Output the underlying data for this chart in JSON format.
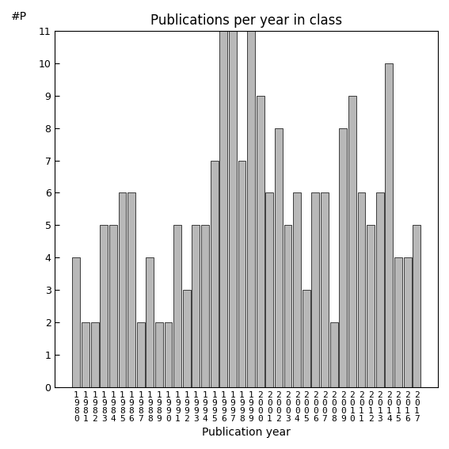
{
  "title": "Publications per year in class",
  "xlabel": "Publication year",
  "ylabel": "#P",
  "years": [
    1980,
    1981,
    1982,
    1983,
    1984,
    1985,
    1986,
    1987,
    1988,
    1989,
    1990,
    1991,
    1992,
    1993,
    1994,
    1995,
    1996,
    1997,
    1998,
    1999,
    2000,
    2001,
    2002,
    2003,
    2004,
    2005,
    2006,
    2007,
    2008,
    2009,
    2010,
    2011,
    2012,
    2013,
    2014,
    2015,
    2016,
    2017
  ],
  "values": [
    4,
    2,
    2,
    5,
    5,
    6,
    6,
    2,
    4,
    2,
    2,
    5,
    3,
    5,
    5,
    7,
    11,
    11,
    7,
    11,
    9,
    6,
    8,
    5,
    6,
    3,
    6,
    6,
    2,
    8,
    9,
    6,
    5,
    6,
    10,
    4,
    4,
    5
  ],
  "bar_color": "#b8b8b8",
  "bar_edgecolor": "#000000",
  "ylim": [
    0,
    11
  ],
  "yticks": [
    0,
    1,
    2,
    3,
    4,
    5,
    6,
    7,
    8,
    9,
    10,
    11
  ],
  "title_fontsize": 12,
  "label_fontsize": 10,
  "tick_fontsize": 9,
  "background_color": "#ffffff"
}
